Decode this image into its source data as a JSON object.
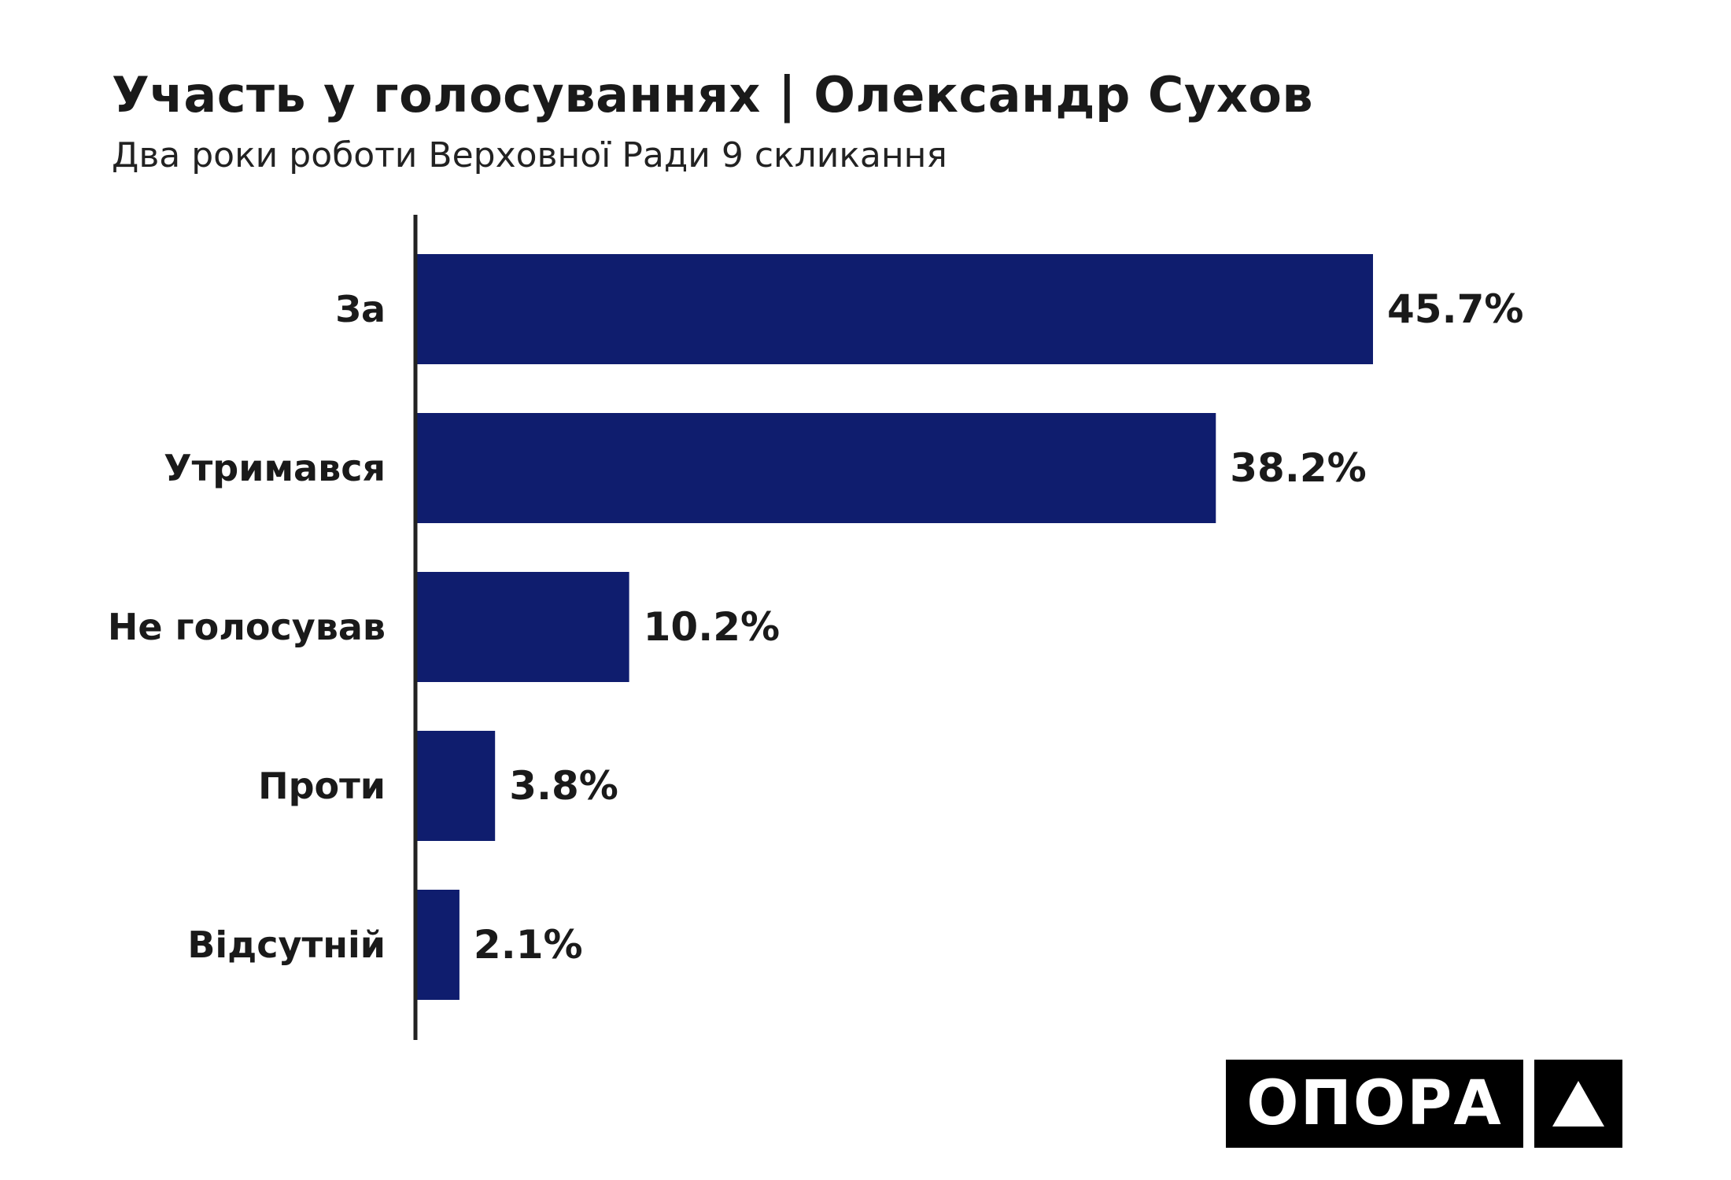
{
  "header": {
    "title": "Участь у голосуваннях | Олександр Сухов",
    "subtitle": "Два роки роботи Верховної Ради 9 скликання"
  },
  "chart_data": {
    "type": "bar",
    "orientation": "horizontal",
    "categories": [
      "За",
      "Утримався",
      "Не голосував",
      "Проти",
      "Відсутній"
    ],
    "values": [
      45.7,
      38.2,
      10.2,
      3.8,
      2.1
    ],
    "value_labels": [
      "45.7%",
      "38.2%",
      "10.2%",
      "3.8%",
      "2.1%"
    ],
    "unit": "%",
    "title": "Участь у голосуваннях | Олександр Сухов",
    "subtitle": "Два роки роботи Верховної Ради 9 скликання",
    "xlabel": "",
    "ylabel": "",
    "xlim": [
      0,
      50
    ],
    "grid": false,
    "legend": "none",
    "bar_color": "#0f1d6e"
  },
  "logo": {
    "text": "ОПОРА",
    "mark_icon": "triangle-icon",
    "background": "#000000",
    "foreground": "#ffffff"
  }
}
